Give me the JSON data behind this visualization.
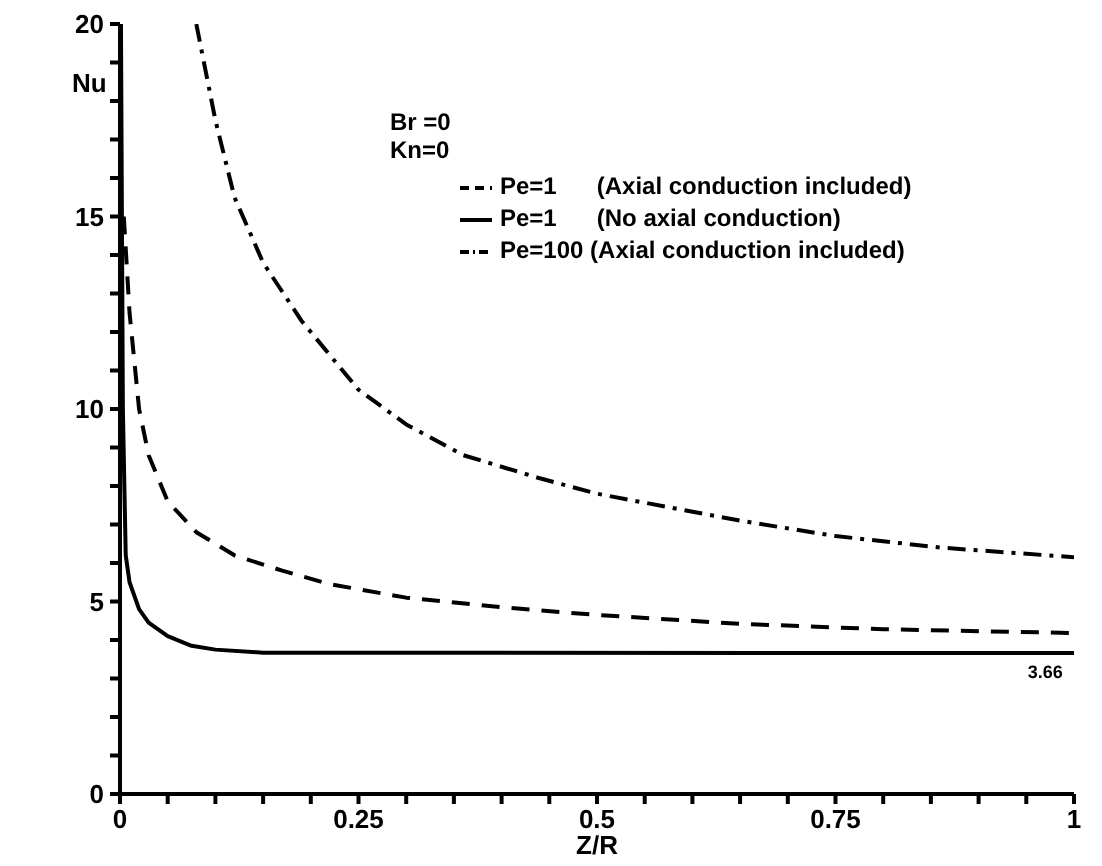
{
  "chart_data": {
    "type": "line",
    "xlabel": "Z/R",
    "ylabel": "Nu",
    "xlim": [
      0,
      1
    ],
    "ylim": [
      0,
      20
    ],
    "xticks": [
      0,
      {
        "value": 0.05,
        "label": null
      },
      {
        "value": 0.1,
        "label": null
      },
      {
        "value": 0.15,
        "label": null
      },
      {
        "value": 0.2,
        "label": null
      },
      0.25,
      {
        "value": 0.3,
        "label": null
      },
      {
        "value": 0.35,
        "label": null
      },
      {
        "value": 0.4,
        "label": null
      },
      {
        "value": 0.45,
        "label": null
      },
      0.5,
      {
        "value": 0.55,
        "label": null
      },
      {
        "value": 0.6,
        "label": null
      },
      {
        "value": 0.65,
        "label": null
      },
      {
        "value": 0.7,
        "label": null
      },
      0.75,
      {
        "value": 0.8,
        "label": null
      },
      {
        "value": 0.85,
        "label": null
      },
      {
        "value": 0.9,
        "label": null
      },
      {
        "value": 0.95,
        "label": null
      },
      1
    ],
    "yticks": [
      0,
      {
        "value": 1,
        "label": null
      },
      {
        "value": 2,
        "label": null
      },
      {
        "value": 3,
        "label": null
      },
      {
        "value": 4,
        "label": null
      },
      5,
      {
        "value": 6,
        "label": null
      },
      {
        "value": 7,
        "label": null
      },
      {
        "value": 8,
        "label": null
      },
      {
        "value": 9,
        "label": null
      },
      10,
      {
        "value": 11,
        "label": null
      },
      {
        "value": 12,
        "label": null
      },
      {
        "value": 13,
        "label": null
      },
      {
        "value": 14,
        "label": null
      },
      15,
      {
        "value": 16,
        "label": null
      },
      {
        "value": 17,
        "label": null
      },
      {
        "value": 18,
        "label": null
      },
      {
        "value": 19,
        "label": null
      },
      20
    ],
    "grid": false,
    "legend": "top right",
    "marker": "none",
    "annotations": [
      "Br =0",
      "Kn=0",
      {
        "text": "3.66",
        "x": 0.97,
        "y": 3.66
      }
    ],
    "series": [
      {
        "name": "Pe=1      (Axial conduction included)",
        "color": "#000000",
        "line_style": "dashed",
        "x": [
          0.004,
          0.01,
          0.02,
          0.03,
          0.05,
          0.08,
          0.12,
          0.17,
          0.22,
          0.3,
          0.4,
          0.5,
          0.65,
          0.8,
          1
        ],
        "values": [
          15,
          12.5,
          10,
          8.8,
          7.6,
          6.8,
          6.2,
          5.8,
          5.45,
          5.1,
          4.85,
          4.65,
          4.42,
          4.28,
          4.18
        ]
      },
      {
        "name": "Pe=100 (Axial conduction included)",
        "color": "#000000",
        "line_style": "dashdot",
        "x": [
          0.08,
          0.1,
          0.12,
          0.15,
          0.19,
          0.25,
          0.3,
          0.36,
          0.44,
          0.5,
          0.65,
          0.75,
          0.86,
          1
        ],
        "values": [
          20,
          17.5,
          15.5,
          13.8,
          12.3,
          10.5,
          9.6,
          8.8,
          8.2,
          7.8,
          7.1,
          6.7,
          6.4,
          6.15
        ]
      },
      {
        "name": "Pe=1      (No axial conduction)",
        "color": "#000000",
        "line_style": "solid",
        "x": [
          0.001,
          0.003,
          0.006,
          0.01,
          0.02,
          0.03,
          0.05,
          0.075,
          0.1,
          0.15,
          1
        ],
        "values": [
          20,
          10,
          6.2,
          5.5,
          4.8,
          4.45,
          4.1,
          3.85,
          3.75,
          3.67,
          3.66
        ]
      }
    ]
  }
}
